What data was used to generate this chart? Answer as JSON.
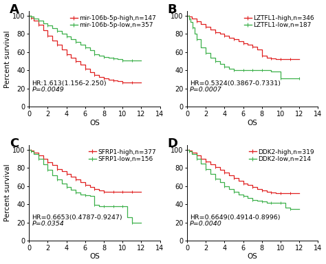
{
  "panels": [
    {
      "label": "A",
      "legend_lines": [
        "mir-106b-5p-high,n=147",
        "mir-106b-5p-low,n=357"
      ],
      "colors": [
        "#e02020",
        "#3cb04a"
      ],
      "hr_text": "HR:1.613(1.156-2.250)",
      "p_text": "P=0.0049",
      "high_steps": [
        [
          0,
          100
        ],
        [
          0.2,
          98
        ],
        [
          0.5,
          95
        ],
        [
          1.0,
          90
        ],
        [
          1.5,
          84
        ],
        [
          2.0,
          78
        ],
        [
          2.5,
          73
        ],
        [
          3.0,
          68
        ],
        [
          3.5,
          63
        ],
        [
          4.0,
          58
        ],
        [
          4.5,
          54
        ],
        [
          5.0,
          50
        ],
        [
          5.5,
          46
        ],
        [
          6.0,
          42
        ],
        [
          6.5,
          38
        ],
        [
          7.0,
          35
        ],
        [
          7.5,
          33
        ],
        [
          8.0,
          31
        ],
        [
          8.5,
          30
        ],
        [
          9.0,
          29
        ],
        [
          9.5,
          28
        ],
        [
          10.0,
          27
        ],
        [
          10.5,
          27
        ],
        [
          11.0,
          27
        ],
        [
          12.0,
          27
        ]
      ],
      "low_steps": [
        [
          0,
          100
        ],
        [
          0.2,
          99
        ],
        [
          0.5,
          97
        ],
        [
          1.0,
          95
        ],
        [
          1.5,
          92
        ],
        [
          2.0,
          89
        ],
        [
          2.5,
          86
        ],
        [
          3.0,
          83
        ],
        [
          3.5,
          80
        ],
        [
          4.0,
          77
        ],
        [
          4.5,
          74
        ],
        [
          5.0,
          71
        ],
        [
          5.5,
          68
        ],
        [
          6.0,
          65
        ],
        [
          6.5,
          62
        ],
        [
          7.0,
          58
        ],
        [
          7.5,
          56
        ],
        [
          8.0,
          55
        ],
        [
          8.5,
          54
        ],
        [
          9.0,
          53
        ],
        [
          9.5,
          52
        ],
        [
          10.0,
          51
        ],
        [
          10.5,
          51
        ],
        [
          11.0,
          51
        ],
        [
          12.0,
          51
        ]
      ],
      "xlim": [
        0,
        14
      ],
      "ylim": [
        0,
        105
      ],
      "xticks": [
        0,
        2,
        4,
        6,
        8,
        10,
        12,
        14
      ],
      "yticks": [
        0,
        20,
        40,
        60,
        80,
        100
      ]
    },
    {
      "label": "B",
      "legend_lines": [
        "LZTFL1-high,n=346",
        "LZTFL1-low,n=187"
      ],
      "colors": [
        "#e02020",
        "#3cb04a"
      ],
      "hr_text": "HR=0.5324(0.3867-0.7331)",
      "p_text": "P=0.0007",
      "high_steps": [
        [
          0,
          100
        ],
        [
          0.2,
          99
        ],
        [
          0.5,
          97
        ],
        [
          1.0,
          94
        ],
        [
          1.5,
          91
        ],
        [
          2.0,
          88
        ],
        [
          2.5,
          85
        ],
        [
          3.0,
          82
        ],
        [
          3.5,
          80
        ],
        [
          4.0,
          78
        ],
        [
          4.5,
          76
        ],
        [
          5.0,
          74
        ],
        [
          5.5,
          72
        ],
        [
          6.0,
          70
        ],
        [
          6.5,
          68
        ],
        [
          7.0,
          66
        ],
        [
          7.5,
          63
        ],
        [
          8.0,
          56
        ],
        [
          8.5,
          54
        ],
        [
          9.0,
          53
        ],
        [
          9.5,
          52
        ],
        [
          10.0,
          52
        ],
        [
          10.5,
          52
        ],
        [
          11.0,
          52
        ],
        [
          12.0,
          52
        ]
      ],
      "low_steps": [
        [
          0,
          100
        ],
        [
          0.2,
          97
        ],
        [
          0.4,
          93
        ],
        [
          0.6,
          87
        ],
        [
          0.8,
          80
        ],
        [
          1.0,
          74
        ],
        [
          1.5,
          65
        ],
        [
          2.0,
          59
        ],
        [
          2.5,
          54
        ],
        [
          3.0,
          50
        ],
        [
          3.5,
          47
        ],
        [
          4.0,
          44
        ],
        [
          4.5,
          42
        ],
        [
          5.0,
          40
        ],
        [
          5.5,
          40
        ],
        [
          6.0,
          40
        ],
        [
          6.5,
          40
        ],
        [
          7.0,
          40
        ],
        [
          7.5,
          40
        ],
        [
          8.0,
          40
        ],
        [
          9.0,
          39
        ],
        [
          10.0,
          31
        ],
        [
          11.0,
          31
        ],
        [
          12.0,
          31
        ]
      ],
      "xlim": [
        0,
        14
      ],
      "ylim": [
        0,
        105
      ],
      "xticks": [
        0,
        2,
        4,
        6,
        8,
        10,
        12,
        14
      ],
      "yticks": [
        0,
        20,
        40,
        60,
        80,
        100
      ]
    },
    {
      "label": "C",
      "legend_lines": [
        "SFRP1-high,n=377",
        "SFRP1-low,n=156"
      ],
      "colors": [
        "#e02020",
        "#3cb04a"
      ],
      "hr_text": "HR=0.6653(0.4787-0.9247)",
      "p_text": "P=0.0354",
      "high_steps": [
        [
          0,
          100
        ],
        [
          0.2,
          99
        ],
        [
          0.5,
          97
        ],
        [
          1.0,
          94
        ],
        [
          1.5,
          90
        ],
        [
          2.0,
          86
        ],
        [
          2.5,
          83
        ],
        [
          3.0,
          79
        ],
        [
          3.5,
          76
        ],
        [
          4.0,
          73
        ],
        [
          4.5,
          70
        ],
        [
          5.0,
          67
        ],
        [
          5.5,
          64
        ],
        [
          6.0,
          61
        ],
        [
          6.5,
          59
        ],
        [
          7.0,
          57
        ],
        [
          7.5,
          55
        ],
        [
          8.0,
          54
        ],
        [
          8.5,
          54
        ],
        [
          9.0,
          54
        ],
        [
          9.5,
          54
        ],
        [
          10.0,
          54
        ],
        [
          10.5,
          54
        ],
        [
          11.0,
          54
        ],
        [
          12.0,
          54
        ]
      ],
      "low_steps": [
        [
          0,
          100
        ],
        [
          0.2,
          98
        ],
        [
          0.5,
          95
        ],
        [
          1.0,
          90
        ],
        [
          1.5,
          84
        ],
        [
          2.0,
          78
        ],
        [
          2.5,
          72
        ],
        [
          3.0,
          67
        ],
        [
          3.5,
          63
        ],
        [
          4.0,
          59
        ],
        [
          4.5,
          56
        ],
        [
          5.0,
          53
        ],
        [
          5.5,
          51
        ],
        [
          6.0,
          50
        ],
        [
          6.5,
          49
        ],
        [
          7.0,
          39
        ],
        [
          7.5,
          38
        ],
        [
          8.0,
          38
        ],
        [
          8.5,
          38
        ],
        [
          9.0,
          38
        ],
        [
          9.5,
          38
        ],
        [
          10.0,
          38
        ],
        [
          10.5,
          26
        ],
        [
          11.0,
          20
        ],
        [
          12.0,
          20
        ]
      ],
      "xlim": [
        0,
        14
      ],
      "ylim": [
        0,
        105
      ],
      "xticks": [
        0,
        2,
        4,
        6,
        8,
        10,
        12,
        14
      ],
      "yticks": [
        0,
        20,
        40,
        60,
        80,
        100
      ]
    },
    {
      "label": "D",
      "legend_lines": [
        "DDK2-high,n=319",
        "DDK2-low,n=214"
      ],
      "colors": [
        "#e02020",
        "#3cb04a"
      ],
      "hr_text": "HR=0.6649(0.4914-0.8996)",
      "p_text": "P=0.0040",
      "high_steps": [
        [
          0,
          100
        ],
        [
          0.2,
          99
        ],
        [
          0.5,
          97
        ],
        [
          1.0,
          94
        ],
        [
          1.5,
          90
        ],
        [
          2.0,
          87
        ],
        [
          2.5,
          84
        ],
        [
          3.0,
          81
        ],
        [
          3.5,
          78
        ],
        [
          4.0,
          75
        ],
        [
          4.5,
          72
        ],
        [
          5.0,
          69
        ],
        [
          5.5,
          66
        ],
        [
          6.0,
          63
        ],
        [
          6.5,
          61
        ],
        [
          7.0,
          59
        ],
        [
          7.5,
          57
        ],
        [
          8.0,
          55
        ],
        [
          8.5,
          54
        ],
        [
          9.0,
          53
        ],
        [
          9.5,
          52
        ],
        [
          10.0,
          52
        ],
        [
          10.5,
          52
        ],
        [
          11.0,
          52
        ],
        [
          12.0,
          52
        ]
      ],
      "low_steps": [
        [
          0,
          100
        ],
        [
          0.2,
          98
        ],
        [
          0.5,
          95
        ],
        [
          1.0,
          90
        ],
        [
          1.5,
          85
        ],
        [
          2.0,
          79
        ],
        [
          2.5,
          73
        ],
        [
          3.0,
          68
        ],
        [
          3.5,
          64
        ],
        [
          4.0,
          60
        ],
        [
          4.5,
          57
        ],
        [
          5.0,
          54
        ],
        [
          5.5,
          51
        ],
        [
          6.0,
          49
        ],
        [
          6.5,
          47
        ],
        [
          7.0,
          45
        ],
        [
          7.5,
          44
        ],
        [
          8.0,
          43
        ],
        [
          8.5,
          42
        ],
        [
          9.0,
          42
        ],
        [
          9.5,
          42
        ],
        [
          10.0,
          42
        ],
        [
          10.5,
          36
        ],
        [
          11.0,
          35
        ],
        [
          12.0,
          35
        ]
      ],
      "xlim": [
        0,
        14
      ],
      "ylim": [
        0,
        105
      ],
      "xticks": [
        0,
        2,
        4,
        6,
        8,
        10,
        12,
        14
      ],
      "yticks": [
        0,
        20,
        40,
        60,
        80,
        100
      ]
    }
  ],
  "ylabel": "Percent survival",
  "xlabel": "OS",
  "background_color": "#ffffff",
  "tick_fontsize": 7,
  "label_fontsize": 7.5,
  "legend_fontsize": 6.5,
  "panel_label_fontsize": 13,
  "hr_fontsize": 6.8
}
